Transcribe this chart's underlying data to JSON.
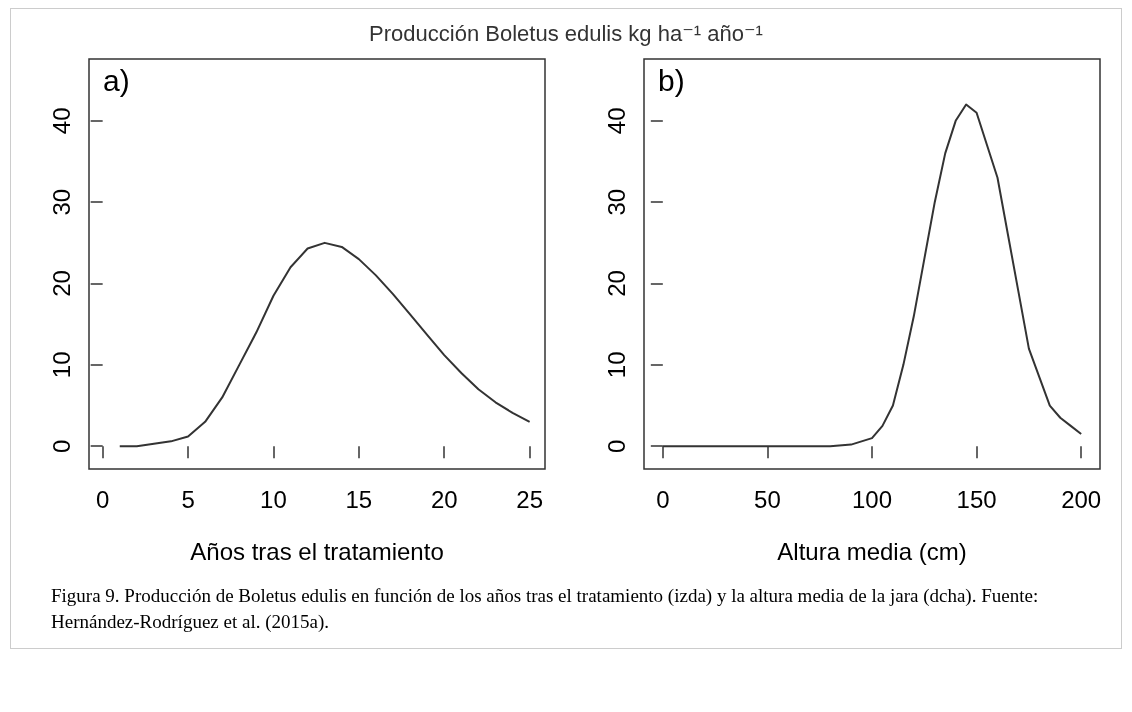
{
  "chart_data": [
    {
      "type": "line",
      "title": "Producción Boletus edulis kg ha⁻¹ año⁻¹",
      "annotations": [
        "a)"
      ],
      "xlabel": "Años tras el tratamiento",
      "color": "#333333",
      "marker": "none",
      "line_style": "solid",
      "grid": false,
      "x": [
        1,
        2,
        3,
        4,
        5,
        6,
        7,
        8,
        9,
        10,
        11,
        12,
        13,
        14,
        15,
        16,
        17,
        18,
        19,
        20,
        21,
        22,
        23,
        24,
        25
      ],
      "values": [
        0,
        0,
        0.3,
        0.6,
        1.2,
        3,
        6,
        10,
        14,
        18.5,
        22,
        24.3,
        25,
        24.5,
        23,
        21,
        18.7,
        16.2,
        13.7,
        11.2,
        9,
        7,
        5.4,
        4.1,
        3
      ],
      "xlim": [
        -0.8,
        25.9
      ],
      "xticks": [
        0,
        5,
        10,
        15,
        20,
        25
      ],
      "ylim": [
        -2.8,
        47.6
      ],
      "yticks": [
        0,
        10,
        20,
        30,
        40
      ]
    },
    {
      "type": "line",
      "annotations": [
        "b)",
        "Figura 9. Producción de Boletus edulis en función de los años tras el tratamiento (izda) y la altura media de la jara (dcha). Fuente: Hernández-Rodríguez et al. (2015a)."
      ],
      "xlabel": "Altura media (cm)",
      "color": "#333333",
      "marker": "none",
      "line_style": "solid",
      "grid": false,
      "x": [
        0,
        20,
        40,
        60,
        80,
        90,
        100,
        105,
        110,
        115,
        120,
        125,
        130,
        135,
        140,
        145,
        150,
        155,
        160,
        165,
        170,
        175,
        180,
        185,
        190,
        195,
        200
      ],
      "values": [
        0,
        0,
        0,
        0,
        0,
        0.2,
        1,
        2.5,
        5,
        10,
        16,
        23,
        30,
        36,
        40,
        42,
        41,
        37,
        33,
        26,
        19,
        12,
        8.5,
        5,
        3.5,
        2.5,
        1.5
      ],
      "xlim": [
        -9,
        209
      ],
      "xticks": [
        0,
        50,
        100,
        150,
        200
      ],
      "ylim": [
        -2.8,
        47.6
      ],
      "yticks": [
        0,
        10,
        20,
        30,
        40
      ]
    }
  ]
}
